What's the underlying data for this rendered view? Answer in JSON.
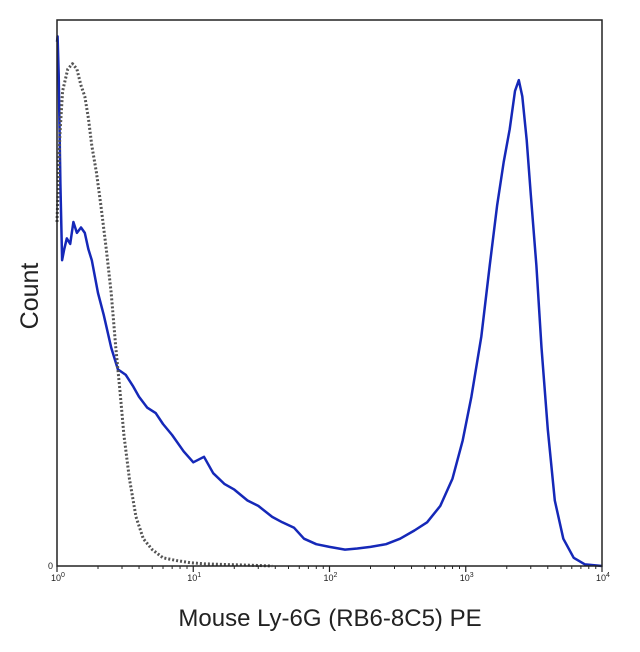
{
  "chart_data": {
    "type": "line",
    "title": "",
    "xlabel": "Mouse Ly-6G (RB6-8C5) PE",
    "ylabel": "Count",
    "x_scale": "log",
    "xlim": [
      1,
      10000
    ],
    "ylim": [
      0,
      100
    ],
    "x_ticks": [
      {
        "value": 1,
        "base": "10",
        "exp": "0"
      },
      {
        "value": 10,
        "base": "10",
        "exp": "1"
      },
      {
        "value": 100,
        "base": "10",
        "exp": "2"
      },
      {
        "value": 1000,
        "base": "10",
        "exp": "3"
      },
      {
        "value": 10000,
        "base": "10",
        "exp": "4"
      }
    ],
    "y_ticks": [
      {
        "value": 0,
        "label": "0"
      }
    ],
    "grid": false,
    "legend": "none",
    "series": [
      {
        "color": "#1528b8",
        "style": "solid",
        "points": [
          [
            1.0,
            96
          ],
          [
            1.01,
            97
          ],
          [
            1.03,
            90
          ],
          [
            1.06,
            70
          ],
          [
            1.09,
            56
          ],
          [
            1.13,
            58
          ],
          [
            1.18,
            60
          ],
          [
            1.25,
            59
          ],
          [
            1.32,
            63
          ],
          [
            1.4,
            61
          ],
          [
            1.5,
            62
          ],
          [
            1.6,
            61
          ],
          [
            1.7,
            58
          ],
          [
            1.8,
            56
          ],
          [
            2.0,
            50
          ],
          [
            2.2,
            46
          ],
          [
            2.5,
            40
          ],
          [
            2.8,
            36
          ],
          [
            3.2,
            35
          ],
          [
            3.6,
            33
          ],
          [
            4.0,
            31
          ],
          [
            4.6,
            29
          ],
          [
            5.3,
            28
          ],
          [
            6.0,
            26
          ],
          [
            7.0,
            24
          ],
          [
            8.5,
            21
          ],
          [
            10,
            19
          ],
          [
            12,
            20
          ],
          [
            14,
            17
          ],
          [
            17,
            15
          ],
          [
            20,
            14
          ],
          [
            25,
            12
          ],
          [
            30,
            11
          ],
          [
            38,
            9
          ],
          [
            45,
            8
          ],
          [
            55,
            7
          ],
          [
            65,
            5
          ],
          [
            80,
            4
          ],
          [
            100,
            3.5
          ],
          [
            130,
            3
          ],
          [
            160,
            3.2
          ],
          [
            200,
            3.5
          ],
          [
            260,
            4
          ],
          [
            330,
            5
          ],
          [
            420,
            6.5
          ],
          [
            520,
            8
          ],
          [
            650,
            11
          ],
          [
            800,
            16
          ],
          [
            950,
            23
          ],
          [
            1100,
            31
          ],
          [
            1300,
            42
          ],
          [
            1500,
            55
          ],
          [
            1700,
            66
          ],
          [
            1900,
            74
          ],
          [
            2100,
            80
          ],
          [
            2300,
            87
          ],
          [
            2450,
            89
          ],
          [
            2600,
            86
          ],
          [
            2800,
            78
          ],
          [
            3000,
            68
          ],
          [
            3300,
            55
          ],
          [
            3600,
            40
          ],
          [
            4000,
            25
          ],
          [
            4500,
            12
          ],
          [
            5200,
            5
          ],
          [
            6200,
            1.5
          ],
          [
            7500,
            0.3
          ],
          [
            10000,
            0
          ]
        ]
      },
      {
        "color": "#555555",
        "style": "dotted",
        "points": [
          [
            1.0,
            63
          ],
          [
            1.05,
            79
          ],
          [
            1.1,
            87
          ],
          [
            1.2,
            91
          ],
          [
            1.3,
            92
          ],
          [
            1.4,
            91
          ],
          [
            1.5,
            88
          ],
          [
            1.6,
            86
          ],
          [
            1.7,
            82
          ],
          [
            1.8,
            77
          ],
          [
            1.95,
            72
          ],
          [
            2.1,
            66
          ],
          [
            2.3,
            58
          ],
          [
            2.5,
            50
          ],
          [
            2.7,
            40
          ],
          [
            2.9,
            32
          ],
          [
            3.1,
            24
          ],
          [
            3.4,
            16
          ],
          [
            3.8,
            9
          ],
          [
            4.3,
            5
          ],
          [
            5.0,
            3
          ],
          [
            6.0,
            1.5
          ],
          [
            7.5,
            1
          ],
          [
            9.5,
            0.6
          ],
          [
            12,
            0.4
          ],
          [
            16,
            0.3
          ],
          [
            22,
            0.2
          ],
          [
            30,
            0.1
          ],
          [
            38,
            0
          ]
        ]
      }
    ]
  }
}
